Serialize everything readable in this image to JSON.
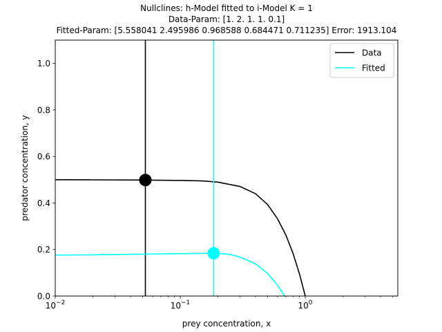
{
  "chart_data": {
    "type": "line",
    "title_lines": [
      "Nullclines: h-Model fitted to i-Model K = 1",
      "Data-Param: [1.  2.  1.  1.  0.1]",
      "Fitted-Param: [5.558041 2.495986 0.968588 0.684471 0.711235] Error: 1913.104"
    ],
    "xlabel": "prey concentration, x",
    "ylabel": "predator concentration, y",
    "xscale": "log",
    "xlim": [
      0.01,
      5.5
    ],
    "ylim": [
      0.0,
      1.1
    ],
    "x_ticks": [
      {
        "value": 0.01,
        "base": "10",
        "exp": "−2"
      },
      {
        "value": 0.1,
        "base": "10",
        "exp": "−1"
      },
      {
        "value": 1,
        "base": "10",
        "exp": "0"
      }
    ],
    "y_ticks": [
      {
        "value": 0.0,
        "label": "0.0"
      },
      {
        "value": 0.2,
        "label": "0.2"
      },
      {
        "value": 0.4,
        "label": "0.4"
      },
      {
        "value": 0.6,
        "label": "0.6"
      },
      {
        "value": 0.8,
        "label": "0.8"
      },
      {
        "value": 1.0,
        "label": "1.0"
      }
    ],
    "legend": {
      "position": "top-right"
    },
    "series": [
      {
        "name": "Data",
        "color": "#000000",
        "vertical_nullcline_x": 0.0526,
        "curve": [
          [
            0.01,
            0.5
          ],
          [
            0.02,
            0.4995
          ],
          [
            0.05,
            0.4985
          ],
          [
            0.1,
            0.497
          ],
          [
            0.15,
            0.4947
          ],
          [
            0.2,
            0.4895
          ],
          [
            0.3,
            0.471
          ],
          [
            0.4,
            0.44
          ],
          [
            0.5,
            0.393
          ],
          [
            0.6,
            0.332
          ],
          [
            0.7,
            0.262
          ],
          [
            0.8,
            0.182
          ],
          [
            0.9,
            0.094
          ],
          [
            1.0,
            0.0
          ]
        ],
        "equilibrium": [
          0.0526,
          0.4987
        ]
      },
      {
        "name": "Fitted",
        "color": "#00ffff",
        "vertical_nullcline_x": 0.185,
        "curve": [
          [
            0.01,
            0.176
          ],
          [
            0.02,
            0.177
          ],
          [
            0.05,
            0.18
          ],
          [
            0.1,
            0.182
          ],
          [
            0.185,
            0.184
          ],
          [
            0.25,
            0.179
          ],
          [
            0.3,
            0.168
          ],
          [
            0.4,
            0.138
          ],
          [
            0.5,
            0.097
          ],
          [
            0.6,
            0.046
          ],
          [
            0.685,
            0.0
          ]
        ],
        "equilibrium": [
          0.185,
          0.184
        ]
      }
    ]
  }
}
